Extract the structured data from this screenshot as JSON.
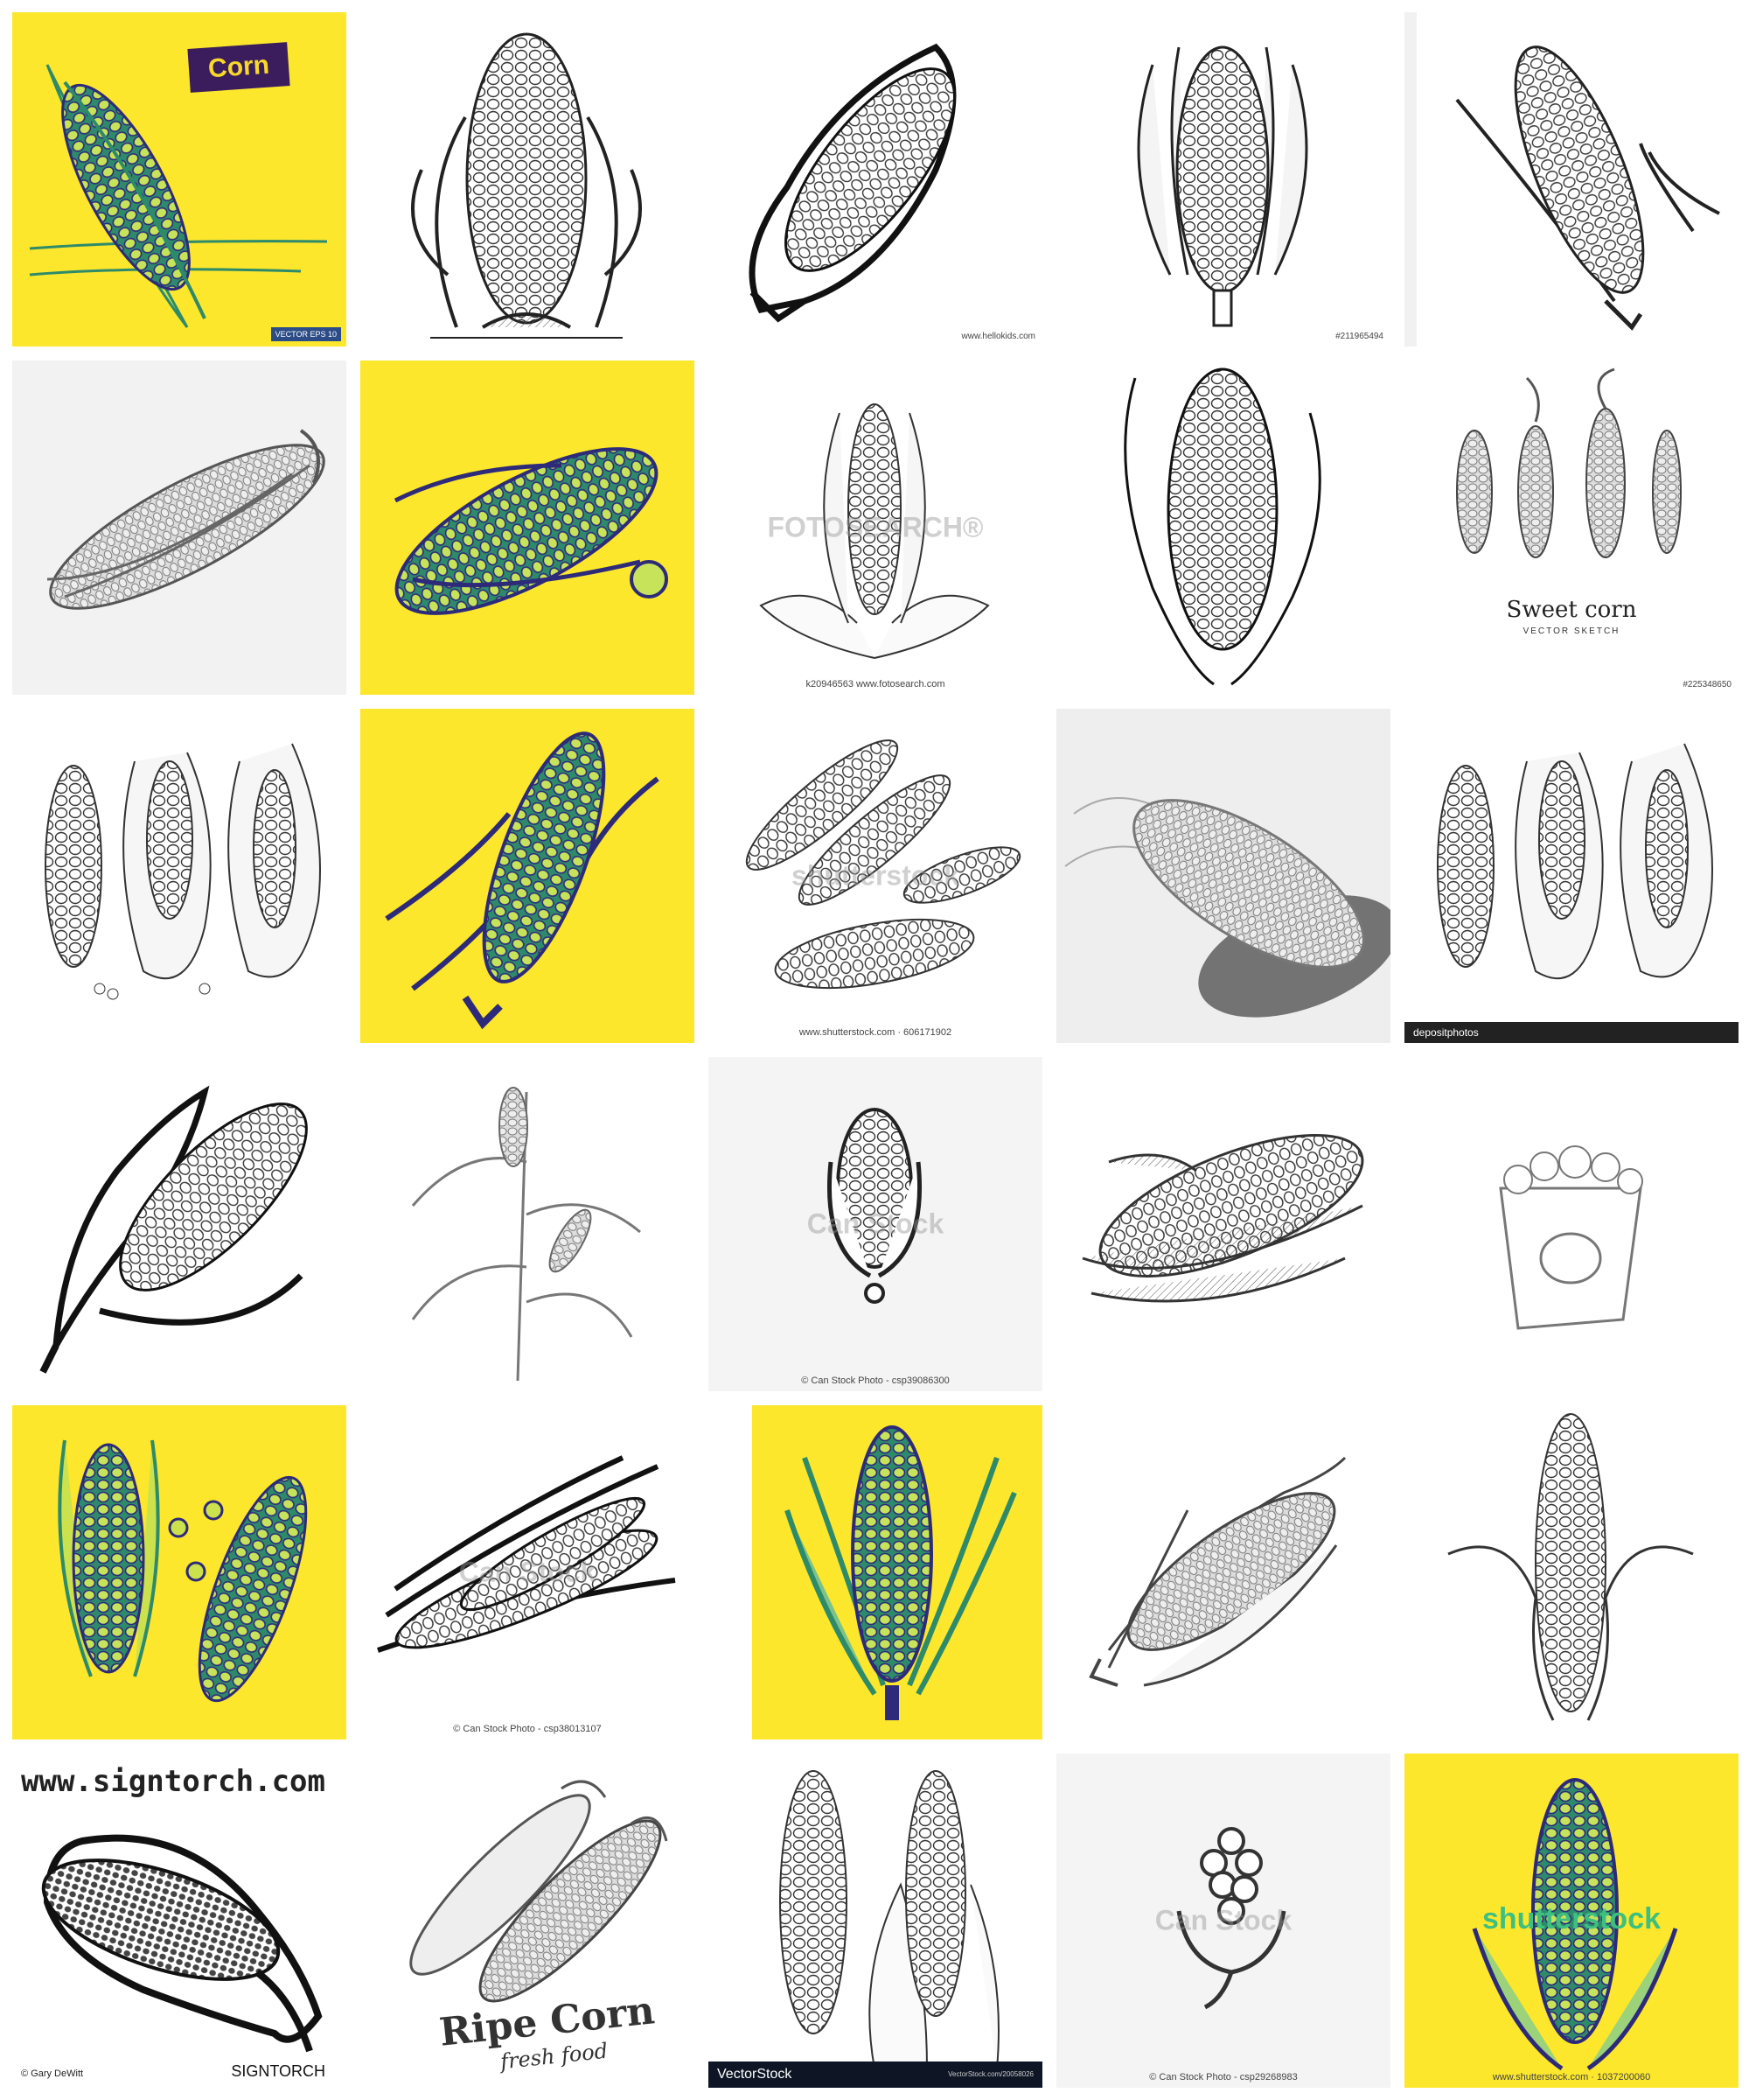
{
  "colors": {
    "yellow": "#fce72c",
    "ink": "#2f2f2f",
    "navy": "#2d2a7a",
    "green": "#3aa56e"
  },
  "tiles": {
    "t1": {
      "badge": "Corn",
      "vector": "VECTOR EPS 10"
    },
    "t3": {
      "caption": "www.hellokids.com"
    },
    "t4": {
      "caption": "#211965494"
    },
    "t10": {
      "title": "Sweet corn",
      "subtitle": "VECTOR   SKETCH",
      "caption": "#225348650"
    },
    "t8": {
      "watermark": "FOTOSEARCH®",
      "caption": "k20946563  www.fotosearch.com"
    },
    "t13": {
      "watermark": "shutterstock",
      "caption": "www.shutterstock.com · 606171902"
    },
    "t15": {
      "brand": "depositphotos"
    },
    "t18": {
      "watermark": "Can Stock",
      "caption": "© Can Stock Photo - csp39086300"
    },
    "t22": {
      "watermark": "Can Stock",
      "caption": "© Can Stock Photo - csp38013107"
    },
    "t26": {
      "url": "www.signtorch.com",
      "credit": "© Gary DeWitt",
      "brand": "SIGNTORCH"
    },
    "t27": {
      "title": "Ripe Corn",
      "subtitle": "fresh food"
    },
    "t28": {
      "brand": "VectorStock",
      "small": "VectorStock.com/20058026"
    },
    "t29": {
      "watermark": "Can Stock",
      "caption": "© Can Stock Photo - csp29268983"
    },
    "t30": {
      "watermark": "shutterstock",
      "caption": "www.shutterstock.com · 1037200060"
    }
  }
}
